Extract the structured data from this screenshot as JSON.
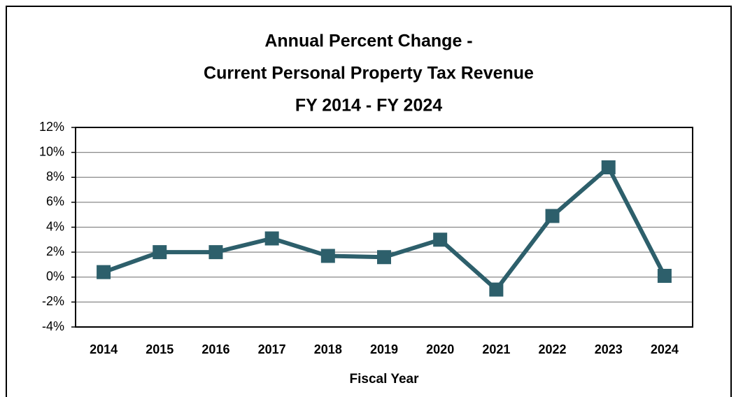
{
  "chart_data": {
    "type": "line",
    "title": [
      "Annual Percent Change -",
      "Current Personal Property Tax Revenue",
      "FY 2014 - FY 2024"
    ],
    "x_label": "Fiscal Year",
    "categories": [
      "2014",
      "2015",
      "2016",
      "2017",
      "2018",
      "2019",
      "2020",
      "2021",
      "2022",
      "2023",
      "2024"
    ],
    "series": [
      {
        "color": "#2d5f6b",
        "values": [
          0.4,
          2.0,
          2.0,
          3.1,
          1.7,
          1.6,
          3.0,
          -1.0,
          4.9,
          8.8,
          0.1
        ]
      }
    ],
    "ylim": [
      -4,
      12
    ],
    "yticks": [
      {
        "value": -4,
        "label": "-4%"
      },
      {
        "value": -2,
        "label": "-2%"
      },
      {
        "value": 0,
        "label": "0%"
      },
      {
        "value": 2,
        "label": "2%"
      },
      {
        "value": 4,
        "label": "4%"
      },
      {
        "value": 6,
        "label": "6%"
      },
      {
        "value": 8,
        "label": "8%"
      },
      {
        "value": 10,
        "label": "10%"
      },
      {
        "value": 12,
        "label": "12%"
      }
    ],
    "grid": true
  }
}
